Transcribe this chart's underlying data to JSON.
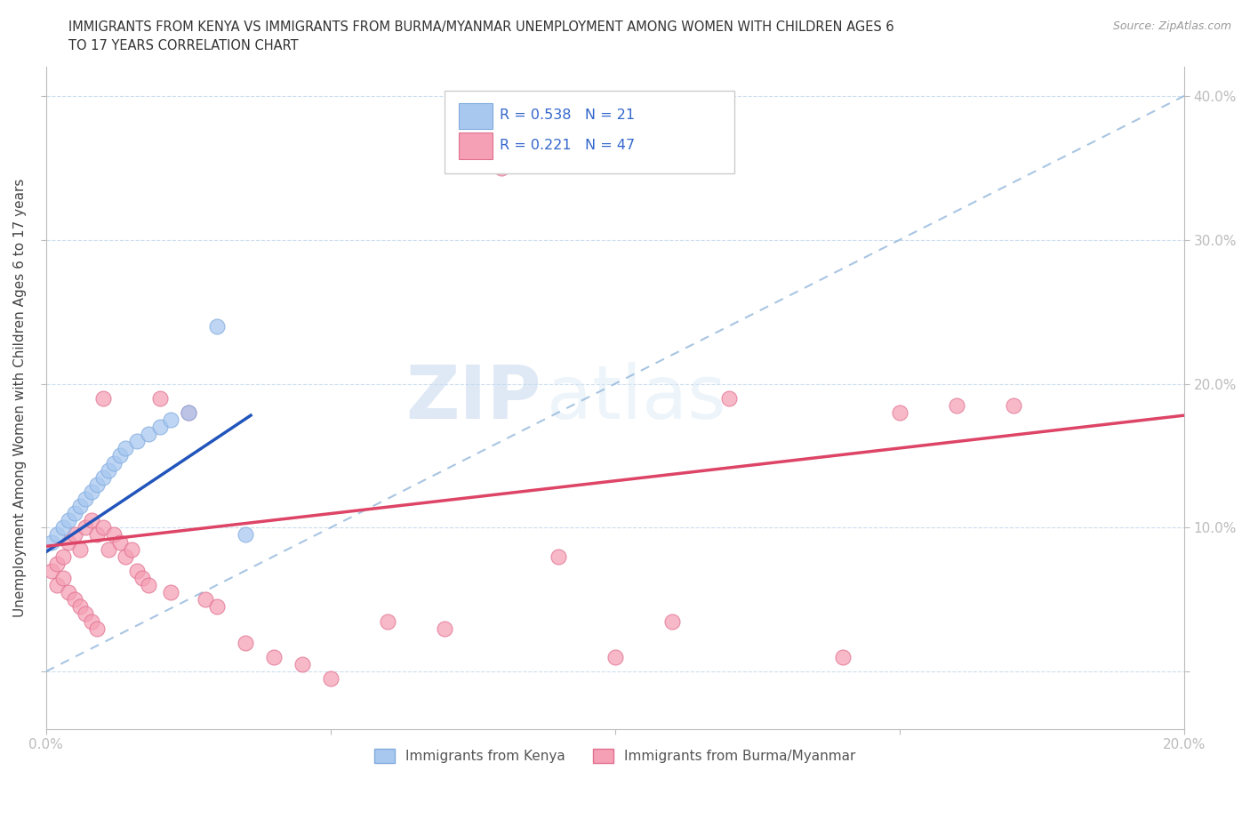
{
  "title_line1": "IMMIGRANTS FROM KENYA VS IMMIGRANTS FROM BURMA/MYANMAR UNEMPLOYMENT AMONG WOMEN WITH CHILDREN AGES 6",
  "title_line2": "TO 17 YEARS CORRELATION CHART",
  "source": "Source: ZipAtlas.com",
  "ylabel": "Unemployment Among Women with Children Ages 6 to 17 years",
  "xlim": [
    0.0,
    0.2
  ],
  "ylim": [
    -0.04,
    0.42
  ],
  "yticks": [
    0.0,
    0.1,
    0.2,
    0.3,
    0.4
  ],
  "ytick_labels": [
    "",
    "10.0%",
    "20.0%",
    "30.0%",
    "40.0%"
  ],
  "xticks": [
    0.0,
    0.05,
    0.1,
    0.15,
    0.2
  ],
  "xtick_labels": [
    "0.0%",
    "",
    "",
    "",
    "20.0%"
  ],
  "kenya_color": "#a8c8f0",
  "kenya_edge_color": "#80aade",
  "burma_color": "#f5a0b5",
  "burma_edge_color": "#e07090",
  "kenya_line_color": "#2255bb",
  "burma_line_color": "#dd4466",
  "diagonal_color": "#99bbdd",
  "R_kenya": 0.538,
  "N_kenya": 21,
  "R_burma": 0.221,
  "N_burma": 47,
  "watermark_zip": "ZIP",
  "watermark_atlas": "atlas",
  "kenya_scatter_x": [
    0.001,
    0.002,
    0.003,
    0.004,
    0.005,
    0.006,
    0.007,
    0.008,
    0.009,
    0.01,
    0.011,
    0.012,
    0.013,
    0.014,
    0.016,
    0.018,
    0.02,
    0.022,
    0.025,
    0.03,
    0.035
  ],
  "kenya_scatter_y": [
    0.09,
    0.095,
    0.1,
    0.105,
    0.11,
    0.115,
    0.12,
    0.125,
    0.13,
    0.135,
    0.14,
    0.145,
    0.15,
    0.155,
    0.16,
    0.165,
    0.17,
    0.175,
    0.18,
    0.24,
    0.095
  ],
  "burma_scatter_x": [
    0.001,
    0.002,
    0.002,
    0.003,
    0.003,
    0.004,
    0.004,
    0.005,
    0.005,
    0.006,
    0.006,
    0.007,
    0.007,
    0.008,
    0.008,
    0.009,
    0.009,
    0.01,
    0.01,
    0.011,
    0.012,
    0.013,
    0.014,
    0.015,
    0.016,
    0.017,
    0.018,
    0.02,
    0.022,
    0.025,
    0.028,
    0.03,
    0.035,
    0.04,
    0.045,
    0.05,
    0.06,
    0.07,
    0.08,
    0.09,
    0.1,
    0.11,
    0.12,
    0.14,
    0.15,
    0.16,
    0.17
  ],
  "burma_scatter_y": [
    0.07,
    0.075,
    0.06,
    0.08,
    0.065,
    0.09,
    0.055,
    0.095,
    0.05,
    0.085,
    0.045,
    0.1,
    0.04,
    0.105,
    0.035,
    0.095,
    0.03,
    0.1,
    0.19,
    0.085,
    0.095,
    0.09,
    0.08,
    0.085,
    0.07,
    0.065,
    0.06,
    0.19,
    0.055,
    0.18,
    0.05,
    0.045,
    0.02,
    0.01,
    0.005,
    -0.005,
    0.035,
    0.03,
    0.35,
    0.08,
    0.01,
    0.035,
    0.19,
    0.01,
    0.18,
    0.185,
    0.185
  ]
}
